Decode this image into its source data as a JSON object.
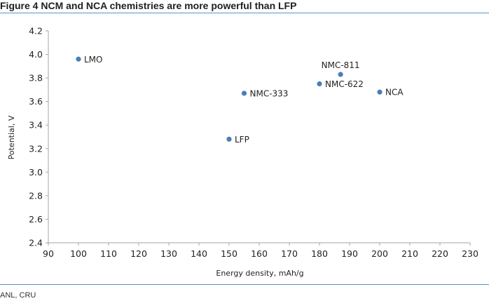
{
  "figure": {
    "title": "Figure 4 NCM and NCA chemistries are more powerful than LFP",
    "source": "ANL, CRU"
  },
  "colors": {
    "point": "#4a7ebb",
    "rule": "#5b8fd0",
    "axis": "#a6a6a6"
  },
  "chart_data": {
    "type": "scatter",
    "title": "",
    "xlabel": "Energy density, mAh/g",
    "ylabel": "Potential, V",
    "xlim": [
      90,
      230
    ],
    "ylim": [
      2.4,
      4.2
    ],
    "xticks": [
      90,
      100,
      110,
      120,
      130,
      140,
      150,
      160,
      170,
      180,
      190,
      200,
      210,
      220,
      230
    ],
    "yticks": [
      "2.4",
      "2.6",
      "2.8",
      "3.0",
      "3.2",
      "3.4",
      "3.6",
      "3.8",
      "4.0",
      "4.2"
    ],
    "grid": false,
    "points": [
      {
        "label": "LMO",
        "x": 100,
        "y": 3.96,
        "label_side": "right"
      },
      {
        "label": "NMC-811",
        "x": 187,
        "y": 3.83,
        "label_side": "above"
      },
      {
        "label": "NMC-622",
        "x": 180,
        "y": 3.75,
        "label_side": "right"
      },
      {
        "label": "NMC-333",
        "x": 155,
        "y": 3.67,
        "label_side": "right"
      },
      {
        "label": "NCA",
        "x": 200,
        "y": 3.68,
        "label_side": "right"
      },
      {
        "label": "LFP",
        "x": 150,
        "y": 3.28,
        "label_side": "right"
      }
    ]
  }
}
